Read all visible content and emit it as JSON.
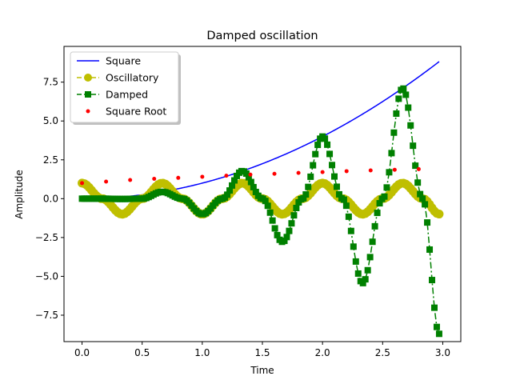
{
  "chart_data": {
    "type": "line",
    "title": "Damped oscillation",
    "xlabel": "Time",
    "ylabel": "Amplitude",
    "xlim": [
      -0.15,
      3.15
    ],
    "ylim": [
      -9.2,
      9.8
    ],
    "xticks": [
      0.0,
      0.5,
      1.0,
      1.5,
      2.0,
      2.5,
      3.0
    ],
    "xtick_labels": [
      "0.0",
      "0.5",
      "1.0",
      "1.5",
      "2.0",
      "2.5",
      "3.0"
    ],
    "yticks": [
      -7.5,
      -5.0,
      -2.5,
      0.0,
      2.5,
      5.0,
      7.5
    ],
    "ytick_labels": [
      "−7.5",
      "−5.0",
      "−2.5",
      "0.0",
      "2.5",
      "5.0",
      "7.5"
    ],
    "grid": false,
    "legend_position": "top-left",
    "series": [
      {
        "name": "Square",
        "style": "solid line",
        "color": "#0000ff",
        "x": [
          0.0,
          0.25,
          0.5,
          0.75,
          1.0,
          1.25,
          1.5,
          1.75,
          2.0,
          2.25,
          2.5,
          2.75,
          2.97
        ],
        "y": [
          0.0,
          0.06,
          0.25,
          0.56,
          1.0,
          1.56,
          2.25,
          3.06,
          4.0,
          5.06,
          6.25,
          7.56,
          8.82
        ]
      },
      {
        "name": "Oscillatory",
        "style": "dashed line with circle markers",
        "color": "#bfbf00",
        "x": [
          0.0,
          0.1667,
          0.3333,
          0.5,
          0.6667,
          0.8333,
          1.0,
          1.1667,
          1.3333,
          1.5,
          1.6667,
          1.8333,
          2.0,
          2.1667,
          2.3333,
          2.5,
          2.6667,
          2.8333,
          2.97
        ],
        "y": [
          1.0,
          0.0,
          -1.0,
          0.0,
          1.0,
          0.0,
          -1.0,
          0.0,
          1.0,
          0.0,
          -1.0,
          0.0,
          1.0,
          0.0,
          -1.0,
          0.0,
          1.0,
          0.0,
          -0.99
        ]
      },
      {
        "name": "Damped",
        "style": "dash-dot line with square markers",
        "color": "#008000",
        "x": [
          0.0,
          0.1667,
          0.3333,
          0.5,
          0.6667,
          0.8333,
          1.0,
          1.1667,
          1.3333,
          1.5,
          1.6667,
          1.8333,
          2.0,
          2.1667,
          2.3333,
          2.5,
          2.6667,
          2.8333,
          2.97
        ],
        "y": [
          0.0,
          0.0,
          -0.02,
          0.0,
          0.44,
          0.0,
          -1.0,
          0.0,
          1.78,
          0.0,
          -2.78,
          0.0,
          4.0,
          0.0,
          -5.44,
          0.0,
          7.11,
          0.0,
          -8.7
        ]
      },
      {
        "name": "Square Root",
        "style": "dot markers",
        "color": "#ff0000",
        "x": [
          0.0,
          0.2,
          0.4,
          0.6,
          0.8,
          1.0,
          1.2,
          1.4,
          1.6,
          1.8,
          2.0,
          2.2,
          2.4,
          2.6,
          2.8
        ],
        "y": [
          1.0,
          1.1,
          1.2,
          1.28,
          1.34,
          1.41,
          1.48,
          1.55,
          1.6,
          1.66,
          1.71,
          1.77,
          1.82,
          1.86,
          1.9
        ]
      }
    ]
  }
}
